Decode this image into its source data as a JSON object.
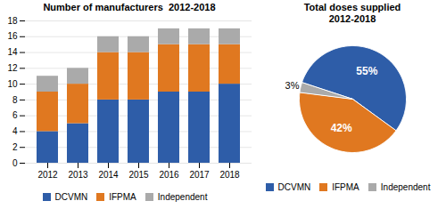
{
  "chart_data": [
    {
      "type": "bar",
      "title": "Number of manufacturers  2012-2018",
      "categories": [
        "2012",
        "2013",
        "2014",
        "2015",
        "2016",
        "2017",
        "2018"
      ],
      "series": [
        {
          "name": "DCVMN",
          "color": "#2E5DA8",
          "values": [
            4,
            5,
            8,
            8,
            9,
            9,
            10
          ]
        },
        {
          "name": "IFPMA",
          "color": "#E07820",
          "values": [
            5,
            5,
            6,
            6,
            6,
            6,
            5
          ]
        },
        {
          "name": "Independent",
          "color": "#AAAAAA",
          "values": [
            2,
            2,
            2,
            2,
            2,
            2,
            2
          ]
        }
      ],
      "stacked": true,
      "ylim": [
        0,
        18
      ],
      "yticks": [
        0,
        2,
        4,
        6,
        8,
        10,
        12,
        14,
        16,
        18
      ],
      "grid": true,
      "legend": "bottom"
    },
    {
      "type": "pie",
      "title": "Total doses supplied\n2012-2018",
      "categories": [
        "DCVMN",
        "IFPMA",
        "Independent"
      ],
      "values": [
        55,
        42,
        3
      ],
      "value_labels": [
        "55%",
        "42%",
        "3%"
      ],
      "colors": [
        "#2E5DA8",
        "#E07820",
        "#AAAAAA"
      ],
      "data_labels": true,
      "legend": "bottom"
    }
  ]
}
